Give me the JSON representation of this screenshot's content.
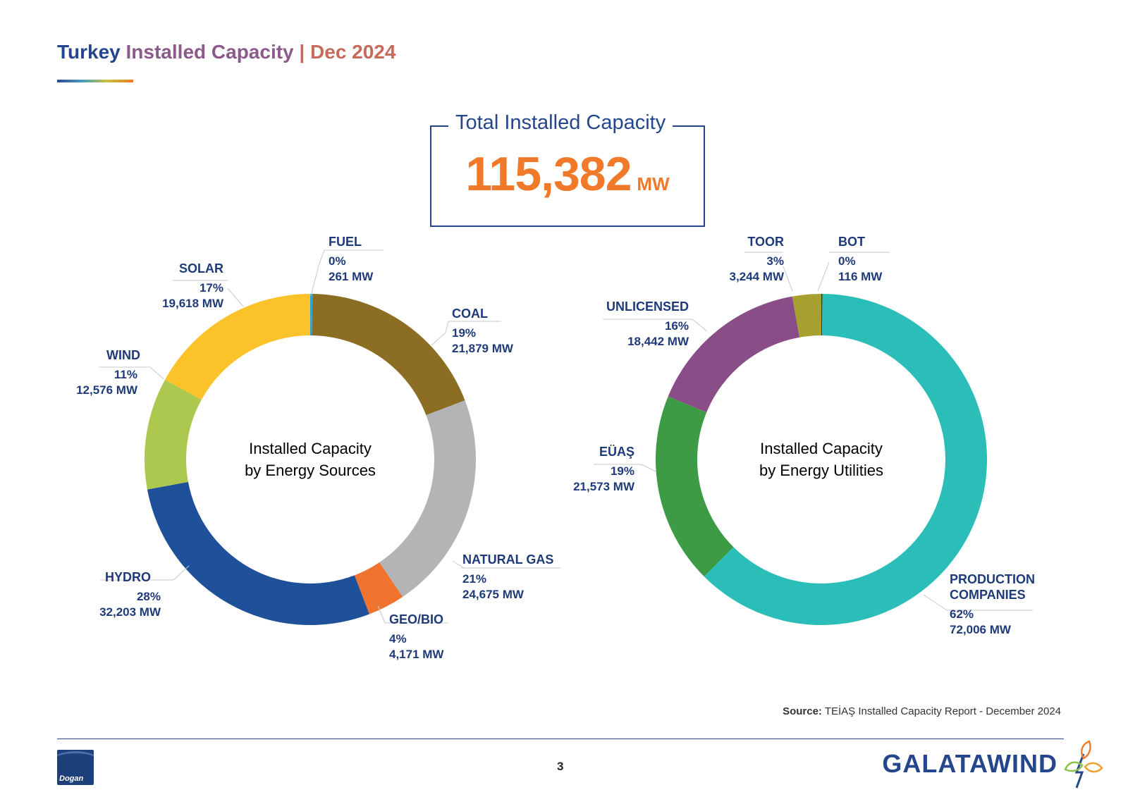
{
  "header": {
    "title_part1": "Turkey",
    "title_part2": "Installed Capacity",
    "title_part3": "| Dec 2024"
  },
  "total": {
    "label": "Total Installed Capacity",
    "value": "115,382",
    "unit": "MW"
  },
  "chart_data": [
    {
      "type": "pie",
      "title": "Installed Capacity by Energy Sources",
      "center_line1": "Installed Capacity",
      "center_line2": "by Energy Sources",
      "unit": "MW",
      "categories": [
        "FUEL",
        "COAL",
        "NATURAL GAS",
        "GEO/BIO",
        "HYDRO",
        "WIND",
        "SOLAR"
      ],
      "values": [
        261,
        21879,
        24675,
        4171,
        32203,
        12576,
        19618
      ],
      "percents": [
        "0%",
        "19%",
        "21%",
        "4%",
        "28%",
        "11%",
        "17%"
      ],
      "mw_labels": [
        "261 MW",
        "21,879 MW",
        "24,675 MW",
        "4,171 MW",
        "32,203 MW",
        "12,576 MW",
        "19,618 MW"
      ],
      "colors": [
        "#2aa3d8",
        "#8b6d23",
        "#b2b4b6",
        "#f07430",
        "#1f509a",
        "#acc84e",
        "#fbc22a"
      ]
    },
    {
      "type": "pie",
      "title": "Installed Capacity by Energy Utilities",
      "center_line1": "Installed Capacity",
      "center_line2": "by Energy Utilities",
      "unit": "MW",
      "categories": [
        "BOT",
        "PRODUCTION COMPANIES",
        "EÜAŞ",
        "UNLICENSED",
        "TOOR"
      ],
      "values": [
        116,
        72006,
        21573,
        18442,
        3244
      ],
      "percents": [
        "0%",
        "62%",
        "19%",
        "16%",
        "3%"
      ],
      "mw_labels": [
        "116 MW",
        "72,006 MW",
        "21,573 MW",
        "18,442 MW",
        "3,244 MW"
      ],
      "colors": [
        "#333333",
        "#2bbdb8",
        "#3d9a45",
        "#894e88",
        "#a5a030"
      ],
      "label_production_line1": "PRODUCTION",
      "label_production_line2": "COMPANIES"
    }
  ],
  "footer": {
    "source_label": "Source:",
    "source_text": "TEİAŞ Installed Capacity Report - December 2024",
    "page_number": "3",
    "left_logo_text": "Dogan",
    "right_logo_text": "GALATAWIND"
  }
}
